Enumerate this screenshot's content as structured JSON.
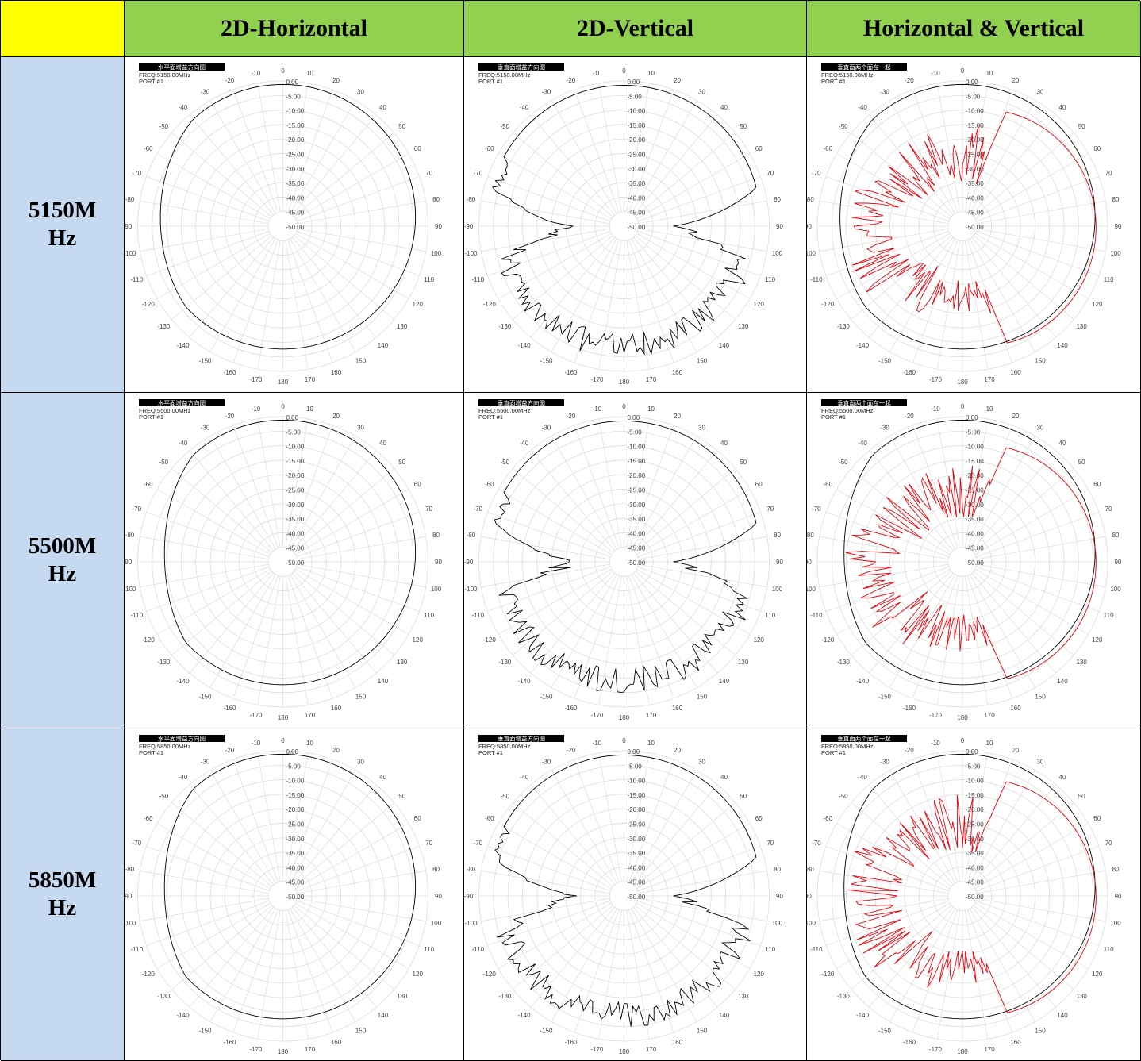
{
  "table": {
    "corner": "",
    "columns": [
      "2D-Horizontal",
      "2D-Vertical",
      "Horizontal & Vertical"
    ],
    "rows": [
      {
        "line1": "5150M",
        "line2": "Hz"
      },
      {
        "line1": "5500M",
        "line2": "Hz"
      },
      {
        "line1": "5850M",
        "line2": "Hz"
      }
    ]
  },
  "colors": {
    "corner": "#ffff00",
    "column_header": "#92d050",
    "row_header": "#c5d9f1",
    "trace_h": "#000000",
    "trace_v": "#e8000a"
  },
  "chart_data": [
    {
      "type": "polar",
      "title": "水平面增益方向图",
      "freq": "FREQ:5150.00MHz",
      "port": "PORT #1",
      "r_ticks": [
        "0.00",
        "-5.00",
        "-10.00",
        "-15.00",
        "-20.00",
        "-25.00",
        "-30.00",
        "-35.00",
        "-40.00",
        "-45.00",
        "-50.00"
      ],
      "theta_ticks": [
        "0",
        "10",
        "20",
        "30",
        "40",
        "50",
        "60",
        "70",
        "80",
        "90",
        "100",
        "110",
        "120",
        "130",
        "140",
        "150",
        "160",
        "170",
        "180",
        "-170",
        "-160",
        "-150",
        "-140",
        "-130",
        "-120",
        "-110",
        "-100",
        "-90",
        "-80",
        "-70",
        "-60",
        "-50",
        "-40",
        "-30",
        "-20",
        "-10"
      ],
      "rlim": [
        -50,
        0
      ],
      "pattern": "horizontal",
      "freq_mhz": 5150
    },
    {
      "type": "polar",
      "title": "垂直面增益方向图",
      "freq": "FREQ:5150.00MHz",
      "port": "PORT #1",
      "r_ticks": [
        "0.00",
        "-5.00",
        "-10.00",
        "-15.00",
        "-20.00",
        "-25.00",
        "-30.00",
        "-35.00",
        "-40.00",
        "-45.00",
        "-50.00"
      ],
      "theta_ticks": [
        "0",
        "10",
        "20",
        "30",
        "40",
        "50",
        "60",
        "70",
        "80",
        "90",
        "100",
        "110",
        "120",
        "130",
        "140",
        "150",
        "160",
        "170",
        "180",
        "-170",
        "-160",
        "-150",
        "-140",
        "-130",
        "-120",
        "-110",
        "-100",
        "-90",
        "-80",
        "-70",
        "-60",
        "-50",
        "-40",
        "-30",
        "-20",
        "-10"
      ],
      "rlim": [
        -50,
        0
      ],
      "pattern": "vertical",
      "freq_mhz": 5150
    },
    {
      "type": "polar",
      "title": "垂直面两个面在一起",
      "freq": "FREQ:5150.00MHz",
      "port": "PORT #1",
      "r_ticks": [
        "0.00",
        "-5.00",
        "-10.00",
        "-15.00",
        "-20.00",
        "-25.00",
        "-30.00",
        "-35.00",
        "-40.00",
        "-45.00",
        "-50.00"
      ],
      "theta_ticks": [
        "0",
        "10",
        "20",
        "30",
        "40",
        "50",
        "60",
        "70",
        "80",
        "90",
        "100",
        "110",
        "120",
        "130",
        "140",
        "150",
        "160",
        "170",
        "180",
        "-170",
        "-160",
        "-150",
        "-140",
        "-130",
        "-120",
        "-110",
        "-100",
        "-90",
        "-80",
        "-70",
        "-60",
        "-50",
        "-40",
        "-30",
        "-20",
        "-10"
      ],
      "rlim": [
        -50,
        0
      ],
      "pattern": "combined",
      "freq_mhz": 5150
    },
    {
      "type": "polar",
      "title": "水平面增益方向图",
      "freq": "FREQ:5500.00MHz",
      "port": "PORT #1",
      "r_ticks": [
        "0.00",
        "-5.00",
        "-10.00",
        "-15.00",
        "-20.00",
        "-25.00",
        "-30.00",
        "-35.00",
        "-40.00",
        "-45.00",
        "-50.00"
      ],
      "theta_ticks": [
        "0",
        "10",
        "20",
        "30",
        "40",
        "50",
        "60",
        "70",
        "80",
        "90",
        "100",
        "110",
        "120",
        "130",
        "140",
        "150",
        "160",
        "170",
        "180",
        "-170",
        "-160",
        "-150",
        "-140",
        "-130",
        "-120",
        "-110",
        "-100",
        "-90",
        "-80",
        "-70",
        "-60",
        "-50",
        "-40",
        "-30",
        "-20",
        "-10"
      ],
      "rlim": [
        -50,
        0
      ],
      "pattern": "horizontal",
      "freq_mhz": 5500
    },
    {
      "type": "polar",
      "title": "垂直面增益方向图",
      "freq": "FREQ:5500.00MHz",
      "port": "PORT #1",
      "r_ticks": [
        "0.00",
        "-5.00",
        "-10.00",
        "-15.00",
        "-20.00",
        "-25.00",
        "-30.00",
        "-35.00",
        "-40.00",
        "-45.00",
        "-50.00"
      ],
      "theta_ticks": [
        "0",
        "10",
        "20",
        "30",
        "40",
        "50",
        "60",
        "70",
        "80",
        "90",
        "100",
        "110",
        "120",
        "130",
        "140",
        "150",
        "160",
        "170",
        "180",
        "-170",
        "-160",
        "-150",
        "-140",
        "-130",
        "-120",
        "-110",
        "-100",
        "-90",
        "-80",
        "-70",
        "-60",
        "-50",
        "-40",
        "-30",
        "-20",
        "-10"
      ],
      "rlim": [
        -50,
        0
      ],
      "pattern": "vertical",
      "freq_mhz": 5500
    },
    {
      "type": "polar",
      "title": "垂直面两个面在一起",
      "freq": "FREQ:5500.00MHz",
      "port": "PORT #1",
      "r_ticks": [
        "0.00",
        "-5.00",
        "-10.00",
        "-15.00",
        "-20.00",
        "-25.00",
        "-30.00",
        "-35.00",
        "-40.00",
        "-45.00",
        "-50.00"
      ],
      "theta_ticks": [
        "0",
        "10",
        "20",
        "30",
        "40",
        "50",
        "60",
        "70",
        "80",
        "90",
        "100",
        "110",
        "120",
        "130",
        "140",
        "150",
        "160",
        "170",
        "180",
        "-170",
        "-160",
        "-150",
        "-140",
        "-130",
        "-120",
        "-110",
        "-100",
        "-90",
        "-80",
        "-70",
        "-60",
        "-50",
        "-40",
        "-30",
        "-20",
        "-10"
      ],
      "rlim": [
        -50,
        0
      ],
      "pattern": "combined",
      "freq_mhz": 5500
    },
    {
      "type": "polar",
      "title": "水平面增益方向图",
      "freq": "FREQ:5850.00MHz",
      "port": "PORT #1",
      "r_ticks": [
        "0.00",
        "-5.00",
        "-10.00",
        "-15.00",
        "-20.00",
        "-25.00",
        "-30.00",
        "-35.00",
        "-40.00",
        "-45.00",
        "-50.00"
      ],
      "theta_ticks": [
        "0",
        "10",
        "20",
        "30",
        "40",
        "50",
        "60",
        "70",
        "80",
        "90",
        "100",
        "110",
        "120",
        "130",
        "140",
        "150",
        "160",
        "170",
        "180",
        "-170",
        "-160",
        "-150",
        "-140",
        "-130",
        "-120",
        "-110",
        "-100",
        "-90",
        "-80",
        "-70",
        "-60",
        "-50",
        "-40",
        "-30",
        "-20",
        "-10"
      ],
      "rlim": [
        -50,
        0
      ],
      "pattern": "horizontal",
      "freq_mhz": 5850
    },
    {
      "type": "polar",
      "title": "垂直面增益方向图",
      "freq": "FREQ:5850.00MHz",
      "port": "PORT #1",
      "r_ticks": [
        "0.00",
        "-5.00",
        "-10.00",
        "-15.00",
        "-20.00",
        "-25.00",
        "-30.00",
        "-35.00",
        "-40.00",
        "-45.00",
        "-50.00"
      ],
      "theta_ticks": [
        "0",
        "10",
        "20",
        "30",
        "40",
        "50",
        "60",
        "70",
        "80",
        "90",
        "100",
        "110",
        "120",
        "130",
        "140",
        "150",
        "160",
        "170",
        "180",
        "-170",
        "-160",
        "-150",
        "-140",
        "-130",
        "-120",
        "-110",
        "-100",
        "-90",
        "-80",
        "-70",
        "-60",
        "-50",
        "-40",
        "-30",
        "-20",
        "-10"
      ],
      "rlim": [
        -50,
        0
      ],
      "pattern": "vertical",
      "freq_mhz": 5850
    },
    {
      "type": "polar",
      "title": "垂直面两个面在一起",
      "freq": "FREQ:5850.00MHz",
      "port": "PORT #1",
      "r_ticks": [
        "0.00",
        "-5.00",
        "-10.00",
        "-15.00",
        "-20.00",
        "-25.00",
        "-30.00",
        "-35.00",
        "-40.00",
        "-45.00",
        "-50.00"
      ],
      "theta_ticks": [
        "0",
        "10",
        "20",
        "30",
        "40",
        "50",
        "60",
        "70",
        "80",
        "90",
        "100",
        "110",
        "120",
        "130",
        "140",
        "150",
        "160",
        "170",
        "180",
        "-170",
        "-160",
        "-150",
        "-140",
        "-130",
        "-120",
        "-110",
        "-100",
        "-90",
        "-80",
        "-70",
        "-60",
        "-50",
        "-40",
        "-30",
        "-20",
        "-10"
      ],
      "rlim": [
        -50,
        0
      ],
      "pattern": "combined",
      "freq_mhz": 5850
    }
  ]
}
